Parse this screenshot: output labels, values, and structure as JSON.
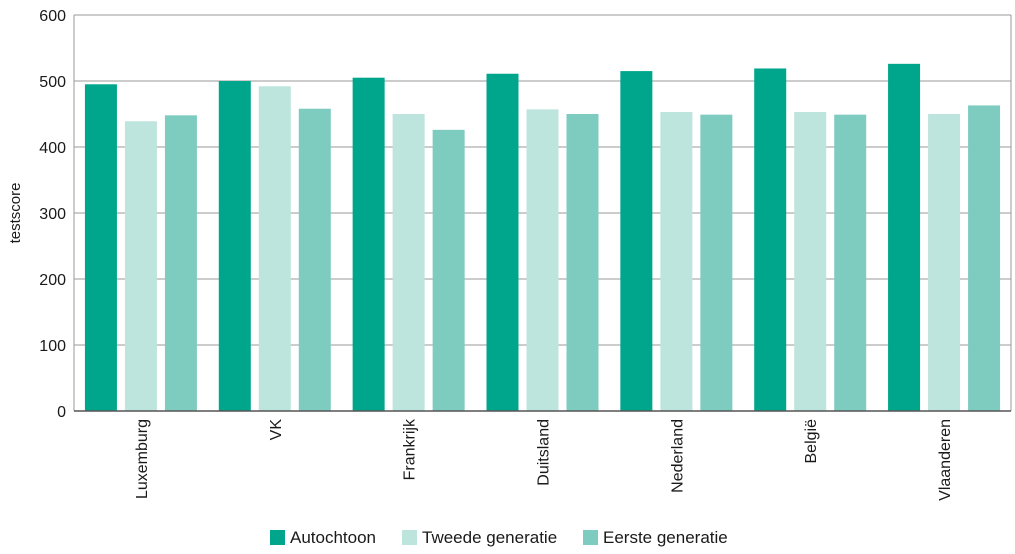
{
  "chart_data": {
    "type": "bar",
    "ylabel": "testscore",
    "xlabel": "",
    "ylim": [
      0,
      600
    ],
    "yticks": [
      0,
      100,
      200,
      300,
      400,
      500,
      600
    ],
    "grid": true,
    "legend_position": "bottom",
    "categories": [
      "Luxemburg",
      "VK",
      "Frankrijk",
      "Duitsland",
      "Nederland",
      "België",
      "Vlaanderen"
    ],
    "highlight_category": "Vlaanderen",
    "highlight_color": "#00a68c",
    "series": [
      {
        "name": "Autochtoon",
        "color": "#00a68c",
        "values": [
          495,
          500,
          505,
          511,
          515,
          519,
          526
        ]
      },
      {
        "name": "Tweede generatie",
        "color": "#bde4dd",
        "values": [
          439,
          492,
          450,
          457,
          453,
          453,
          450
        ]
      },
      {
        "name": "Eerste generatie",
        "color": "#7ecbc0",
        "values": [
          448,
          458,
          426,
          450,
          449,
          449,
          463
        ]
      }
    ]
  }
}
